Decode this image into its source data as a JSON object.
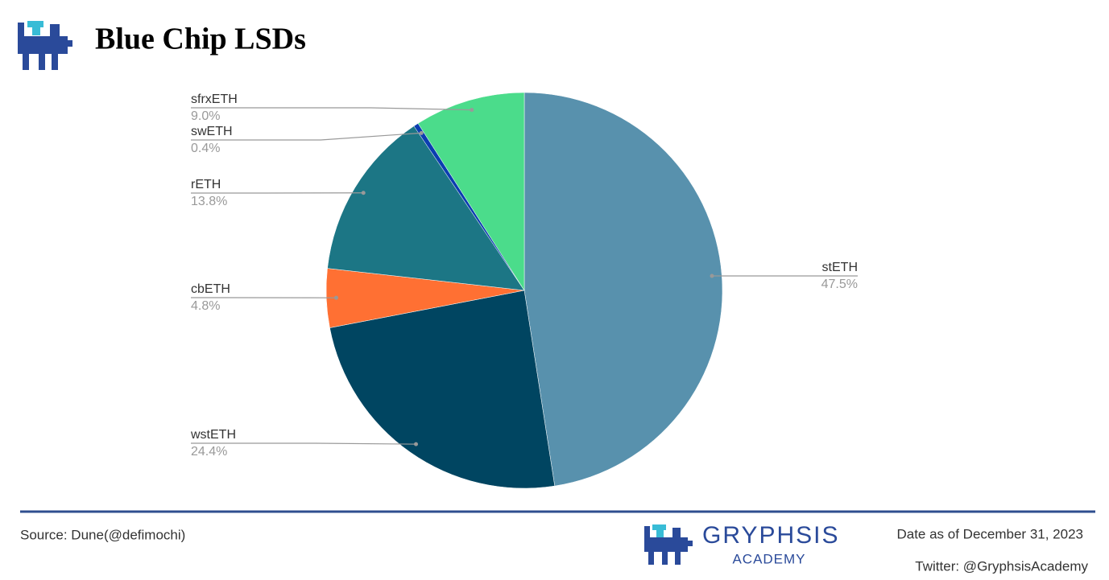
{
  "chart_data": {
    "type": "pie",
    "title": "Blue Chip LSDs",
    "categories": [
      "stETH",
      "wstETH",
      "cbETH",
      "rETH",
      "swETH",
      "sfrxETH"
    ],
    "values": [
      47.5,
      24.4,
      4.8,
      13.8,
      0.4,
      9.0
    ],
    "value_labels": [
      "47.5%",
      "24.4%",
      "4.8%",
      "13.8%",
      "0.4%",
      "9.0%"
    ],
    "colors": [
      "#5891ad",
      "#004561",
      "#ff7033",
      "#1c7685",
      "#0b3eb0",
      "#4bdc8b"
    ]
  },
  "logo": {
    "name": "GRYPHSIS",
    "subtitle": "ACADEMY"
  },
  "footer": {
    "source": "Source: Dune(@defimochi)",
    "date": "Date as of December 31, 2023",
    "twitter": "Twitter: @GryphsisAcademy"
  }
}
